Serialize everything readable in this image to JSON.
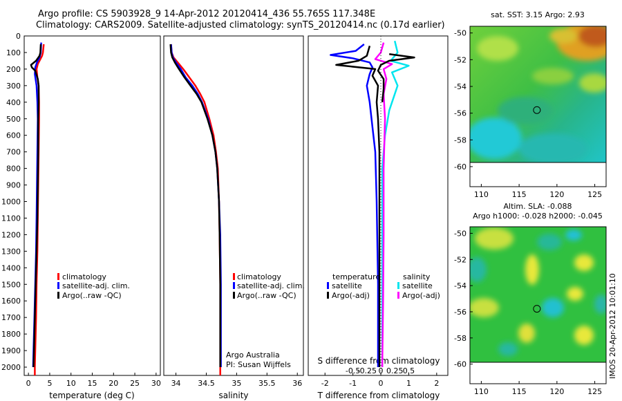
{
  "header": {
    "line1": "Argo profile: CS 5903928_9 14-Apr-2012 20120414_436 55.765S 117.348E",
    "line2": "Climatology: CARS2009. Satellite-adjusted climatology: synTS_20120414.nc (0.17d earlier)"
  },
  "colors": {
    "climatology": "#ff0000",
    "satellite": "#0000ff",
    "argo": "#000000",
    "cyan": "#00e5ee",
    "magenta": "#ff00ff"
  },
  "depth_axis": {
    "min": 0,
    "max": 2050,
    "ticks": [
      0,
      100,
      200,
      300,
      400,
      500,
      600,
      700,
      800,
      900,
      1000,
      1100,
      1200,
      1300,
      1400,
      1500,
      1600,
      1700,
      1800,
      1900,
      2000
    ]
  },
  "chart_data": [
    {
      "type": "line",
      "id": "temperature",
      "xlabel": "temperature (deg C)",
      "ylabel": "depth",
      "xlim": [
        -1,
        31
      ],
      "ylim": [
        2050,
        0
      ],
      "x_ticks": [
        0,
        5,
        10,
        15,
        20,
        25,
        30
      ],
      "legend": [
        "climatology",
        "satellite-adj. clim.",
        "Argo(..raw -QC)"
      ],
      "series": [
        {
          "name": "climatology",
          "color": "#ff0000",
          "points": [
            [
              3.6,
              50
            ],
            [
              3.4,
              100
            ],
            [
              3.2,
              120
            ],
            [
              2.8,
              140
            ],
            [
              2.2,
              170
            ],
            [
              1.9,
              200
            ],
            [
              2.1,
              250
            ],
            [
              2.4,
              300
            ],
            [
              2.5,
              400
            ],
            [
              2.5,
              500
            ],
            [
              2.4,
              700
            ],
            [
              2.3,
              900
            ],
            [
              2.2,
              1100
            ],
            [
              2.1,
              1300
            ],
            [
              1.9,
              1500
            ],
            [
              1.8,
              1700
            ],
            [
              1.6,
              1900
            ],
            [
              1.5,
              2000
            ],
            [
              1.5,
              2050
            ]
          ]
        },
        {
          "name": "satellite-adj. clim.",
          "color": "#0000ff",
          "points": [
            [
              3.0,
              40
            ],
            [
              2.9,
              100
            ],
            [
              2.6,
              130
            ],
            [
              2.0,
              160
            ],
            [
              1.6,
              190
            ],
            [
              1.5,
              230
            ],
            [
              1.9,
              300
            ],
            [
              2.1,
              400
            ],
            [
              2.2,
              500
            ],
            [
              2.1,
              700
            ],
            [
              2.0,
              900
            ],
            [
              1.9,
              1100
            ],
            [
              1.8,
              1300
            ],
            [
              1.6,
              1500
            ],
            [
              1.4,
              1700
            ],
            [
              1.2,
              1900
            ],
            [
              1.1,
              2000
            ]
          ]
        },
        {
          "name": "Argo(..raw -QC)",
          "color": "#000000",
          "points": [
            [
              2.9,
              50
            ],
            [
              2.8,
              100
            ],
            [
              2.6,
              120
            ],
            [
              1.8,
              150
            ],
            [
              0.6,
              175
            ],
            [
              0.8,
              190
            ],
            [
              1.6,
              210
            ],
            [
              2.2,
              260
            ],
            [
              2.4,
              300
            ],
            [
              2.4,
              400
            ],
            [
              2.3,
              500
            ],
            [
              2.3,
              700
            ],
            [
              2.2,
              900
            ],
            [
              2.1,
              1100
            ],
            [
              1.9,
              1300
            ],
            [
              1.7,
              1500
            ],
            [
              1.5,
              1700
            ],
            [
              1.3,
              1900
            ],
            [
              1.2,
              2000
            ]
          ]
        }
      ]
    },
    {
      "type": "line",
      "id": "salinity",
      "xlabel": "salinity",
      "ylabel": "depth",
      "xlim": [
        33.8,
        36.1
      ],
      "ylim": [
        2050,
        0
      ],
      "x_ticks": [
        34,
        34.5,
        35,
        35.5,
        36
      ],
      "x_tick_labels": [
        "34",
        "34.5",
        "35",
        "35.5",
        "36"
      ],
      "legend": [
        "climatology",
        "satellite-adj. clim.",
        "Argo(..raw -QC)"
      ],
      "annotation": [
        "Argo Australia",
        "PI: Susan Wijffels"
      ],
      "series": [
        {
          "name": "climatology",
          "color": "#ff0000",
          "points": [
            [
              33.92,
              50
            ],
            [
              33.93,
              100
            ],
            [
              33.96,
              130
            ],
            [
              34.03,
              160
            ],
            [
              34.12,
              200
            ],
            [
              34.22,
              250
            ],
            [
              34.32,
              300
            ],
            [
              34.4,
              350
            ],
            [
              34.47,
              400
            ],
            [
              34.55,
              500
            ],
            [
              34.62,
              600
            ],
            [
              34.66,
              700
            ],
            [
              34.69,
              800
            ],
            [
              34.71,
              1000
            ],
            [
              34.72,
              1200
            ],
            [
              34.73,
              1500
            ],
            [
              34.73,
              1800
            ],
            [
              34.73,
              2050
            ]
          ]
        },
        {
          "name": "satellite-adj. clim.",
          "color": "#0000ff",
          "points": [
            [
              33.92,
              50
            ],
            [
              33.93,
              100
            ],
            [
              33.95,
              130
            ],
            [
              34.0,
              160
            ],
            [
              34.08,
              200
            ],
            [
              34.16,
              250
            ],
            [
              34.27,
              300
            ],
            [
              34.36,
              350
            ],
            [
              34.43,
              400
            ],
            [
              34.53,
              500
            ],
            [
              34.6,
              600
            ],
            [
              34.65,
              700
            ],
            [
              34.68,
              800
            ],
            [
              34.71,
              1000
            ],
            [
              34.73,
              1200
            ],
            [
              34.74,
              1500
            ],
            [
              34.74,
              1800
            ],
            [
              34.74,
              2000
            ]
          ]
        },
        {
          "name": "Argo(..raw -QC)",
          "color": "#000000",
          "points": [
            [
              33.91,
              50
            ],
            [
              33.92,
              100
            ],
            [
              33.94,
              130
            ],
            [
              33.99,
              165
            ],
            [
              34.05,
              200
            ],
            [
              34.14,
              250
            ],
            [
              34.24,
              300
            ],
            [
              34.34,
              350
            ],
            [
              34.42,
              400
            ],
            [
              34.52,
              500
            ],
            [
              34.6,
              600
            ],
            [
              34.65,
              700
            ],
            [
              34.68,
              800
            ],
            [
              34.71,
              1000
            ],
            [
              34.72,
              1200
            ],
            [
              34.73,
              1500
            ],
            [
              34.73,
              1800
            ],
            [
              34.73,
              2000
            ]
          ]
        }
      ]
    },
    {
      "type": "line",
      "id": "differences",
      "xlabel": "T difference from climatology",
      "xlabel_top": "S difference from climatology",
      "xlim": [
        -2.6,
        2.4
      ],
      "ylim": [
        2050,
        0
      ],
      "x_ticks": [
        -2,
        -1,
        0,
        1,
        2
      ],
      "x_tick_labels": [
        "-2",
        "-1",
        "0",
        "1",
        "2"
      ],
      "s_ticks": [
        -0.5,
        -0.25,
        0,
        0.25,
        0.5
      ],
      "s_tick_labels": [
        "-0.5",
        "-0.25",
        "0",
        "0.25",
        "0.5"
      ],
      "legend_titles": [
        "temperature",
        "salinity"
      ],
      "legend": [
        "satellite",
        "Argo(-adj)",
        "satellite",
        "Argo(-adj)"
      ],
      "series": [
        {
          "name": "temperature satellite",
          "color": "#0000ff",
          "points": [
            [
              -0.6,
              50
            ],
            [
              -0.9,
              90
            ],
            [
              -1.8,
              115
            ],
            [
              -1.0,
              135
            ],
            [
              -0.4,
              160
            ],
            [
              -0.3,
              190
            ],
            [
              -0.4,
              230
            ],
            [
              -0.5,
              300
            ],
            [
              -0.4,
              400
            ],
            [
              -0.3,
              550
            ],
            [
              -0.2,
              700
            ],
            [
              -0.15,
              1000
            ],
            [
              -0.1,
              1500
            ],
            [
              -0.1,
              2000
            ]
          ]
        },
        {
          "name": "temperature Argo(-adj)",
          "color": "#000000",
          "points": [
            [
              -0.4,
              60
            ],
            [
              -0.5,
              120
            ],
            [
              -0.8,
              150
            ],
            [
              -1.6,
              175
            ],
            [
              -0.2,
              200
            ],
            [
              -0.3,
              240
            ],
            [
              -0.1,
              300
            ],
            [
              -0.15,
              400
            ],
            [
              -0.1,
              500
            ],
            [
              -0.05,
              700
            ],
            [
              -0.05,
              1000
            ],
            [
              -0.05,
              1500
            ],
            [
              -0.05,
              2000
            ]
          ]
        },
        {
          "name": "salinity satellite",
          "color": "#00e5ee",
          "points": [
            [
              0.5,
              30
            ],
            [
              0.6,
              100
            ],
            [
              0.35,
              150
            ],
            [
              1.0,
              180
            ],
            [
              0.4,
              220
            ],
            [
              0.6,
              300
            ],
            [
              0.3,
              450
            ],
            [
              0.15,
              600
            ],
            [
              0.05,
              800
            ],
            [
              0.05,
              1200
            ],
            [
              0.05,
              1600
            ],
            [
              0.05,
              2000
            ]
          ]
        },
        {
          "name": "salinity Argo(-adj)",
          "color": "#ff00ff",
          "points": [
            [
              0.1,
              40
            ],
            [
              0.0,
              100
            ],
            [
              -0.2,
              140
            ],
            [
              0.4,
              170
            ],
            [
              0.1,
              200
            ],
            [
              0.2,
              260
            ],
            [
              0.1,
              350
            ],
            [
              0.15,
              500
            ],
            [
              0.1,
              800
            ],
            [
              0.1,
              1200
            ],
            [
              0.08,
              1600
            ],
            [
              0.05,
              2000
            ]
          ]
        },
        {
          "name": "salinity Argo(-adj) black",
          "color": "#000000",
          "points": [
            [
              0.3,
              110
            ],
            [
              1.2,
              130
            ],
            [
              0.3,
              150
            ],
            [
              0.0,
              175
            ],
            [
              -0.1,
              210
            ],
            [
              0.1,
              260
            ],
            [
              0.1,
              320
            ],
            [
              0.05,
              400
            ]
          ]
        }
      ]
    },
    {
      "type": "heatmap",
      "id": "sst-map",
      "title": "sat. SST: 3.15 Argo: 2.93",
      "xlim": [
        108.5,
        126.5
      ],
      "ylim": [
        -61.5,
        -49.5
      ],
      "x_ticks": [
        110,
        115,
        120,
        125
      ],
      "y_ticks": [
        -50,
        -52,
        -54,
        -56,
        -58,
        -60
      ],
      "marker": {
        "lon": 117.35,
        "lat": -55.77
      }
    },
    {
      "type": "heatmap",
      "id": "sla-map",
      "title": "Altim. SLA: -0.088",
      "subtitle": "Argo h1000: -0.028 h2000: -0.045",
      "xlim": [
        108.5,
        126.5
      ],
      "ylim": [
        -61.5,
        -49.5
      ],
      "x_ticks": [
        110,
        115,
        120,
        125
      ],
      "y_ticks": [
        -50,
        -52,
        -54,
        -56,
        -58,
        -60
      ],
      "marker": {
        "lon": 117.35,
        "lat": -55.77
      }
    }
  ],
  "watermark": "IMOS 20-Apr-2012 10:01:10"
}
